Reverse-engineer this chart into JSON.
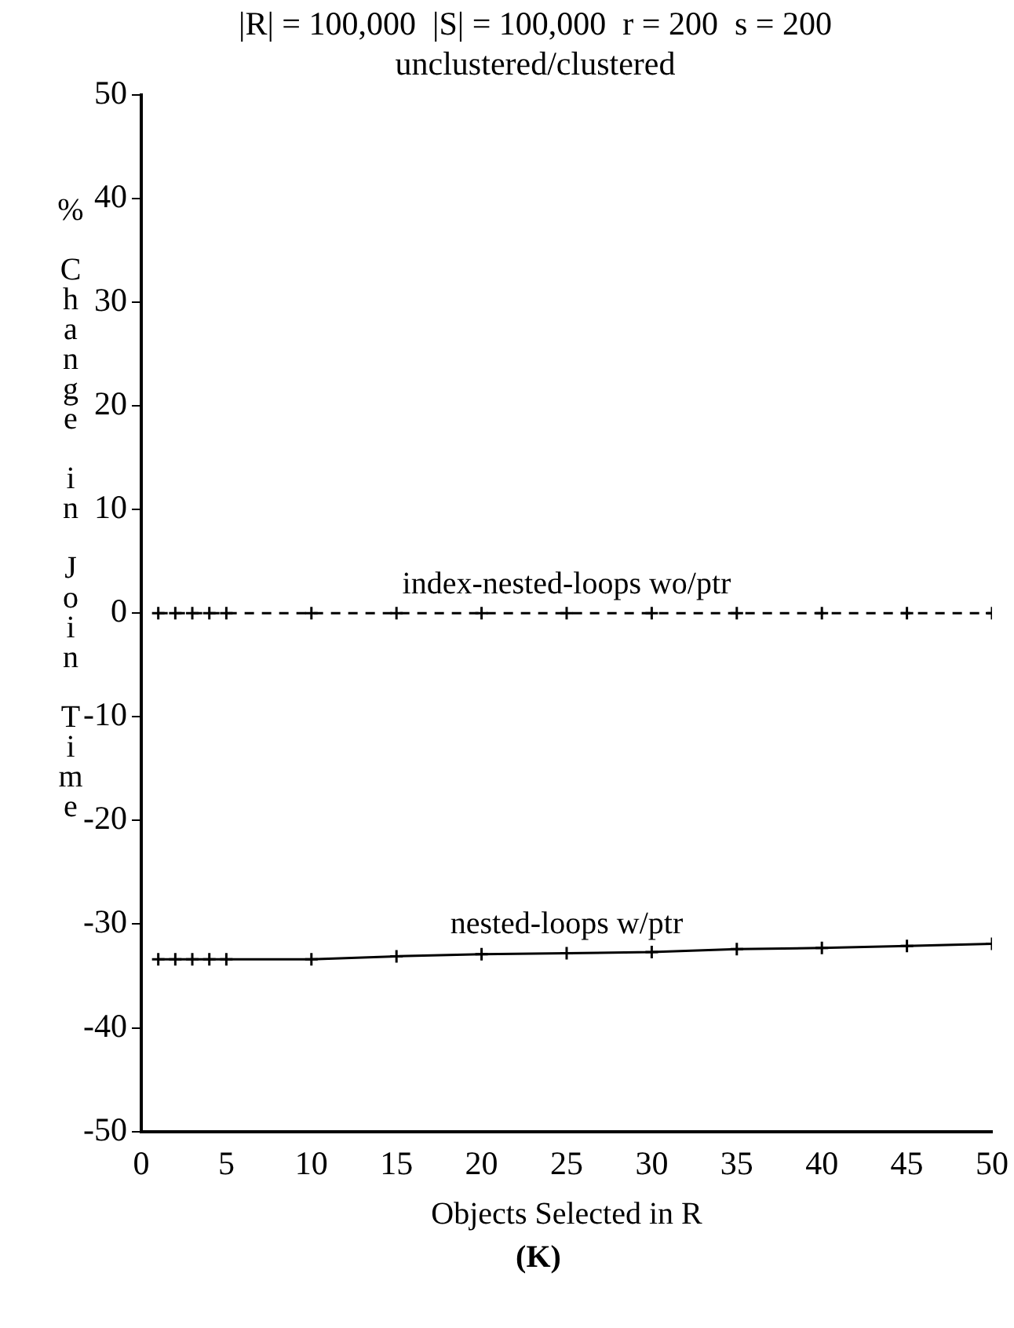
{
  "chart_data": {
    "type": "line",
    "title": "|R| = 100,000  |S| = 100,000  r = 200  s = 200",
    "subtitle": "unclustered/clustered",
    "xlabel": "Objects Selected in R",
    "ylabel": "% Change in Join Time",
    "annotations": [
      "(K)"
    ],
    "x": [
      1,
      2,
      3,
      4,
      5,
      10,
      15,
      20,
      25,
      30,
      35,
      40,
      45,
      50
    ],
    "series": [
      {
        "name": "index-nested-loops wo/ptr",
        "color": "#000000",
        "line_style": "dashed",
        "values": [
          0,
          0,
          0,
          0,
          0,
          0,
          0,
          0,
          0,
          0,
          0,
          0,
          0,
          0
        ]
      },
      {
        "name": "nested-loops w/ptr",
        "color": "#000000",
        "line_style": "solid",
        "values": [
          -33.4,
          -33.4,
          -33.4,
          -33.4,
          -33.4,
          -33.4,
          -33.1,
          -32.9,
          -32.8,
          -32.7,
          -32.4,
          -32.3,
          -32.1,
          -31.9
        ]
      }
    ],
    "xlim": [
      0,
      50
    ],
    "xticks": [
      0,
      5,
      10,
      15,
      20,
      25,
      30,
      35,
      40,
      45,
      50
    ],
    "ylim": [
      -50,
      50
    ],
    "yticks": [
      -50,
      -40,
      -30,
      -20,
      -10,
      0,
      10,
      20,
      30,
      40,
      50
    ],
    "grid": false,
    "legend": false,
    "marker": "cross"
  }
}
